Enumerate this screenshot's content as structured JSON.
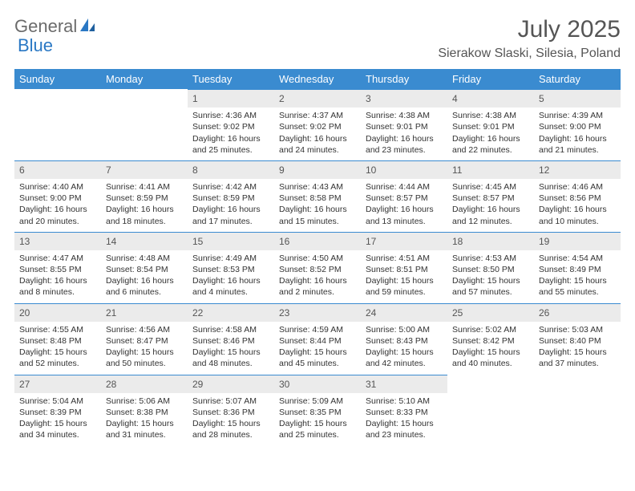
{
  "logo": {
    "text1": "General",
    "text2": "Blue"
  },
  "title": "July 2025",
  "location": "Sierakow Slaski, Silesia, Poland",
  "colors": {
    "header_bg": "#3a8bd0",
    "header_text": "#ffffff",
    "daynum_bg": "#ebebeb",
    "daynum_border": "#3a8bd0",
    "body_text": "#333333",
    "title_color": "#555555",
    "logo_gray": "#6b6b6b",
    "logo_blue": "#2a78c4"
  },
  "weekdays": [
    "Sunday",
    "Monday",
    "Tuesday",
    "Wednesday",
    "Thursday",
    "Friday",
    "Saturday"
  ],
  "grid": [
    [
      null,
      null,
      {
        "n": "1",
        "sunrise": "Sunrise: 4:36 AM",
        "sunset": "Sunset: 9:02 PM",
        "d1": "Daylight: 16 hours",
        "d2": "and 25 minutes."
      },
      {
        "n": "2",
        "sunrise": "Sunrise: 4:37 AM",
        "sunset": "Sunset: 9:02 PM",
        "d1": "Daylight: 16 hours",
        "d2": "and 24 minutes."
      },
      {
        "n": "3",
        "sunrise": "Sunrise: 4:38 AM",
        "sunset": "Sunset: 9:01 PM",
        "d1": "Daylight: 16 hours",
        "d2": "and 23 minutes."
      },
      {
        "n": "4",
        "sunrise": "Sunrise: 4:38 AM",
        "sunset": "Sunset: 9:01 PM",
        "d1": "Daylight: 16 hours",
        "d2": "and 22 minutes."
      },
      {
        "n": "5",
        "sunrise": "Sunrise: 4:39 AM",
        "sunset": "Sunset: 9:00 PM",
        "d1": "Daylight: 16 hours",
        "d2": "and 21 minutes."
      }
    ],
    [
      {
        "n": "6",
        "sunrise": "Sunrise: 4:40 AM",
        "sunset": "Sunset: 9:00 PM",
        "d1": "Daylight: 16 hours",
        "d2": "and 20 minutes."
      },
      {
        "n": "7",
        "sunrise": "Sunrise: 4:41 AM",
        "sunset": "Sunset: 8:59 PM",
        "d1": "Daylight: 16 hours",
        "d2": "and 18 minutes."
      },
      {
        "n": "8",
        "sunrise": "Sunrise: 4:42 AM",
        "sunset": "Sunset: 8:59 PM",
        "d1": "Daylight: 16 hours",
        "d2": "and 17 minutes."
      },
      {
        "n": "9",
        "sunrise": "Sunrise: 4:43 AM",
        "sunset": "Sunset: 8:58 PM",
        "d1": "Daylight: 16 hours",
        "d2": "and 15 minutes."
      },
      {
        "n": "10",
        "sunrise": "Sunrise: 4:44 AM",
        "sunset": "Sunset: 8:57 PM",
        "d1": "Daylight: 16 hours",
        "d2": "and 13 minutes."
      },
      {
        "n": "11",
        "sunrise": "Sunrise: 4:45 AM",
        "sunset": "Sunset: 8:57 PM",
        "d1": "Daylight: 16 hours",
        "d2": "and 12 minutes."
      },
      {
        "n": "12",
        "sunrise": "Sunrise: 4:46 AM",
        "sunset": "Sunset: 8:56 PM",
        "d1": "Daylight: 16 hours",
        "d2": "and 10 minutes."
      }
    ],
    [
      {
        "n": "13",
        "sunrise": "Sunrise: 4:47 AM",
        "sunset": "Sunset: 8:55 PM",
        "d1": "Daylight: 16 hours",
        "d2": "and 8 minutes."
      },
      {
        "n": "14",
        "sunrise": "Sunrise: 4:48 AM",
        "sunset": "Sunset: 8:54 PM",
        "d1": "Daylight: 16 hours",
        "d2": "and 6 minutes."
      },
      {
        "n": "15",
        "sunrise": "Sunrise: 4:49 AM",
        "sunset": "Sunset: 8:53 PM",
        "d1": "Daylight: 16 hours",
        "d2": "and 4 minutes."
      },
      {
        "n": "16",
        "sunrise": "Sunrise: 4:50 AM",
        "sunset": "Sunset: 8:52 PM",
        "d1": "Daylight: 16 hours",
        "d2": "and 2 minutes."
      },
      {
        "n": "17",
        "sunrise": "Sunrise: 4:51 AM",
        "sunset": "Sunset: 8:51 PM",
        "d1": "Daylight: 15 hours",
        "d2": "and 59 minutes."
      },
      {
        "n": "18",
        "sunrise": "Sunrise: 4:53 AM",
        "sunset": "Sunset: 8:50 PM",
        "d1": "Daylight: 15 hours",
        "d2": "and 57 minutes."
      },
      {
        "n": "19",
        "sunrise": "Sunrise: 4:54 AM",
        "sunset": "Sunset: 8:49 PM",
        "d1": "Daylight: 15 hours",
        "d2": "and 55 minutes."
      }
    ],
    [
      {
        "n": "20",
        "sunrise": "Sunrise: 4:55 AM",
        "sunset": "Sunset: 8:48 PM",
        "d1": "Daylight: 15 hours",
        "d2": "and 52 minutes."
      },
      {
        "n": "21",
        "sunrise": "Sunrise: 4:56 AM",
        "sunset": "Sunset: 8:47 PM",
        "d1": "Daylight: 15 hours",
        "d2": "and 50 minutes."
      },
      {
        "n": "22",
        "sunrise": "Sunrise: 4:58 AM",
        "sunset": "Sunset: 8:46 PM",
        "d1": "Daylight: 15 hours",
        "d2": "and 48 minutes."
      },
      {
        "n": "23",
        "sunrise": "Sunrise: 4:59 AM",
        "sunset": "Sunset: 8:44 PM",
        "d1": "Daylight: 15 hours",
        "d2": "and 45 minutes."
      },
      {
        "n": "24",
        "sunrise": "Sunrise: 5:00 AM",
        "sunset": "Sunset: 8:43 PM",
        "d1": "Daylight: 15 hours",
        "d2": "and 42 minutes."
      },
      {
        "n": "25",
        "sunrise": "Sunrise: 5:02 AM",
        "sunset": "Sunset: 8:42 PM",
        "d1": "Daylight: 15 hours",
        "d2": "and 40 minutes."
      },
      {
        "n": "26",
        "sunrise": "Sunrise: 5:03 AM",
        "sunset": "Sunset: 8:40 PM",
        "d1": "Daylight: 15 hours",
        "d2": "and 37 minutes."
      }
    ],
    [
      {
        "n": "27",
        "sunrise": "Sunrise: 5:04 AM",
        "sunset": "Sunset: 8:39 PM",
        "d1": "Daylight: 15 hours",
        "d2": "and 34 minutes."
      },
      {
        "n": "28",
        "sunrise": "Sunrise: 5:06 AM",
        "sunset": "Sunset: 8:38 PM",
        "d1": "Daylight: 15 hours",
        "d2": "and 31 minutes."
      },
      {
        "n": "29",
        "sunrise": "Sunrise: 5:07 AM",
        "sunset": "Sunset: 8:36 PM",
        "d1": "Daylight: 15 hours",
        "d2": "and 28 minutes."
      },
      {
        "n": "30",
        "sunrise": "Sunrise: 5:09 AM",
        "sunset": "Sunset: 8:35 PM",
        "d1": "Daylight: 15 hours",
        "d2": "and 25 minutes."
      },
      {
        "n": "31",
        "sunrise": "Sunrise: 5:10 AM",
        "sunset": "Sunset: 8:33 PM",
        "d1": "Daylight: 15 hours",
        "d2": "and 23 minutes."
      },
      null,
      null
    ]
  ]
}
